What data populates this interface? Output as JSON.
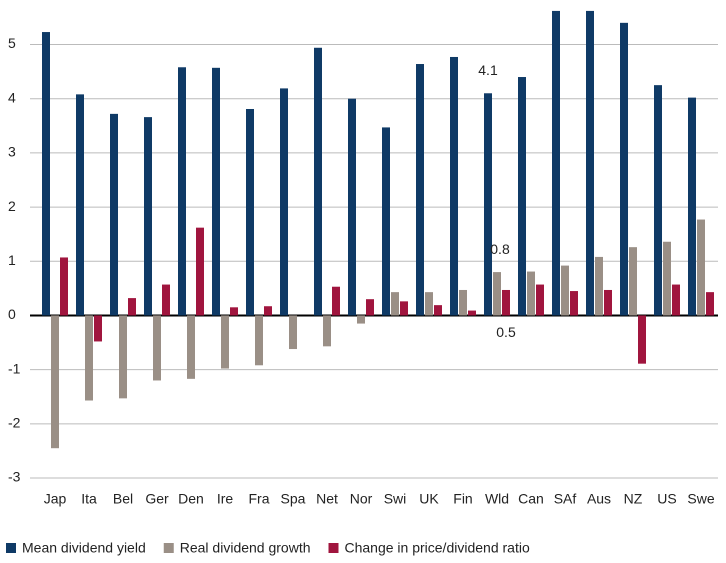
{
  "chart_data": {
    "type": "bar",
    "categories": [
      "Jap",
      "Ita",
      "Bel",
      "Ger",
      "Den",
      "Ire",
      "Fra",
      "Spa",
      "Net",
      "Nor",
      "Swi",
      "UK",
      "Fin",
      "Wld",
      "Can",
      "SAf",
      "Aus",
      "NZ",
      "US",
      "Swe"
    ],
    "series": [
      {
        "name": "Mean dividend yield",
        "color": "#0f3a66",
        "values": [
          5.23,
          4.08,
          3.72,
          3.66,
          4.58,
          4.57,
          3.81,
          4.19,
          4.94,
          4.0,
          3.47,
          4.64,
          4.77,
          4.1,
          4.4,
          5.62,
          5.62,
          5.4,
          4.25,
          4.02
        ]
      },
      {
        "name": "Real dividend growth",
        "color": "#9a8f86",
        "values": [
          -2.45,
          -1.57,
          -1.53,
          -1.2,
          -1.17,
          -0.98,
          -0.92,
          -0.62,
          -0.57,
          -0.15,
          0.43,
          0.43,
          0.47,
          0.8,
          0.81,
          0.92,
          1.08,
          1.26,
          1.36,
          1.77
        ]
      },
      {
        "name": "Change in price/dividend ratio",
        "color": "#a0153e",
        "values": [
          1.07,
          -0.48,
          0.32,
          0.57,
          1.62,
          0.15,
          0.17,
          null,
          0.53,
          0.3,
          0.26,
          0.19,
          0.09,
          0.47,
          0.57,
          0.45,
          0.47,
          -0.89,
          0.57,
          0.43
        ]
      }
    ],
    "annotations": [
      "4.1",
      "0.8",
      "0.5"
    ],
    "ylim": [
      -3,
      5.6
    ],
    "yticks": [
      -3,
      -2,
      -1,
      0,
      1,
      2,
      3,
      4,
      5
    ],
    "grid": true
  }
}
